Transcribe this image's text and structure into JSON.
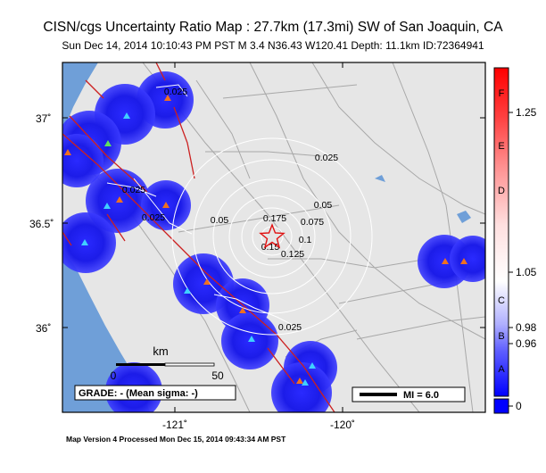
{
  "header": {
    "title": "CISN/cgs Uncertainty Ratio Map : 27.7km (17.3mi) SW of San Joaquin,  CA",
    "subtitle": "Sun Dec 14, 2014 10:10:43 PM PST   M 3.4   N36.43 W120.41   Depth: 11.1km   ID:72364941"
  },
  "footer": {
    "text": "Map Version 4 Processed Mon Dec 15, 2014 09:43:34 AM PST"
  },
  "map": {
    "lat_ticks": [
      "37˚",
      "36.5˚",
      "36˚"
    ],
    "lon_ticks": [
      "-121˚",
      "-120˚"
    ],
    "contour_labels": [
      "0.025",
      "0.025",
      "0.025",
      "0.025",
      "0.025",
      "0.05",
      "0.05",
      "0.075",
      "0.1",
      "0.125",
      "0.15",
      "0.175"
    ],
    "scale_bar": {
      "unit": "km",
      "start": "0",
      "end": "50"
    },
    "grade_label": "GRADE: - (Mean sigma: -)",
    "mmi_legend": "MI = 6.0",
    "colors": {
      "land": "#e6e6e6",
      "water": "#6f9fd8",
      "blue_zone": "#1515e0",
      "fault": "#cc2020",
      "road": "#a8a8a8",
      "contour": "#ffffff"
    }
  },
  "colorbar": {
    "letters": [
      "F",
      "E",
      "D",
      "C",
      "B",
      "A"
    ],
    "values": [
      "1.25",
      "1.05",
      "0.98",
      "0.96",
      "0"
    ]
  }
}
